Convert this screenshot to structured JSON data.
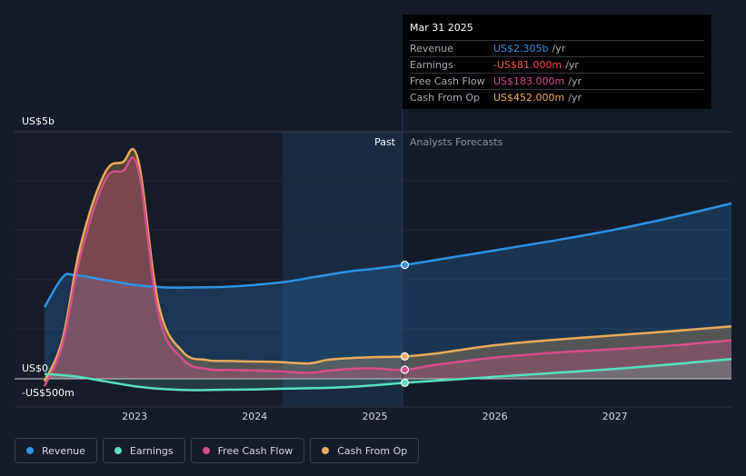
{
  "colors": {
    "background": "#151b28",
    "revenue": "#2e93e6",
    "earnings": "#58e0c0",
    "fcf": "#d44f8c",
    "cfo": "#e8ac5c"
  },
  "tooltip": {
    "date": "Mar 31 2025",
    "rows": [
      {
        "label": "Revenue",
        "value": "US$2.305b",
        "unit": "/yr",
        "color": "#2e93e6"
      },
      {
        "label": "Earnings",
        "value": "-US$81.000m",
        "unit": "/yr",
        "color": "#ff4d4d"
      },
      {
        "label": "Free Cash Flow",
        "value": "US$183.000m",
        "unit": "/yr",
        "color": "#d44f8c"
      },
      {
        "label": "Cash From Op",
        "value": "US$452.000m",
        "unit": "/yr",
        "color": "#e8ac5c"
      }
    ]
  },
  "chart_data": {
    "type": "area",
    "y_top_label": "US$5b",
    "y_zero_label": "US$0",
    "y_bottom_label": "-US$500m",
    "past_label": "Past",
    "forecast_label": "Analysts Forecasts",
    "x_ticks": [
      "2023",
      "2024",
      "2025",
      "2026",
      "2027"
    ],
    "xlim": [
      2022.25,
      2027.97
    ],
    "ylim": [
      -500,
      5000
    ],
    "past_boundary": 2025.25,
    "highlight_start": 2024.25,
    "series": [
      {
        "name": "Revenue",
        "key": "revenue",
        "points": [
          [
            2022.25,
            1450
          ],
          [
            2022.4,
            2050
          ],
          [
            2022.5,
            2100
          ],
          [
            2022.75,
            2000
          ],
          [
            2023,
            1900
          ],
          [
            2023.25,
            1850
          ],
          [
            2023.5,
            1850
          ],
          [
            2023.75,
            1860
          ],
          [
            2024,
            1900
          ],
          [
            2024.25,
            1960
          ],
          [
            2024.5,
            2060
          ],
          [
            2024.75,
            2160
          ],
          [
            2025,
            2230
          ],
          [
            2025.25,
            2305
          ],
          [
            2025.5,
            2400
          ],
          [
            2026,
            2600
          ],
          [
            2026.5,
            2800
          ],
          [
            2027,
            3020
          ],
          [
            2027.5,
            3280
          ],
          [
            2027.97,
            3550
          ]
        ]
      },
      {
        "name": "Earnings",
        "key": "earnings",
        "points": [
          [
            2022.25,
            100
          ],
          [
            2022.5,
            50
          ],
          [
            2022.75,
            -50
          ],
          [
            2023,
            -150
          ],
          [
            2023.25,
            -210
          ],
          [
            2023.5,
            -230
          ],
          [
            2023.75,
            -220
          ],
          [
            2024,
            -215
          ],
          [
            2024.25,
            -200
          ],
          [
            2024.5,
            -190
          ],
          [
            2024.75,
            -170
          ],
          [
            2025,
            -130
          ],
          [
            2025.25,
            -81
          ],
          [
            2025.5,
            -40
          ],
          [
            2026,
            40
          ],
          [
            2026.5,
            120
          ],
          [
            2027,
            200
          ],
          [
            2027.5,
            300
          ],
          [
            2027.97,
            400
          ]
        ]
      },
      {
        "name": "Free Cash Flow",
        "key": "fcf",
        "points": [
          [
            2022.25,
            -150
          ],
          [
            2022.4,
            700
          ],
          [
            2022.55,
            2500
          ],
          [
            2022.75,
            4000
          ],
          [
            2022.9,
            4200
          ],
          [
            2023.03,
            4250
          ],
          [
            2023.2,
            1300
          ],
          [
            2023.4,
            400
          ],
          [
            2023.6,
            200
          ],
          [
            2023.8,
            180
          ],
          [
            2024,
            170
          ],
          [
            2024.2,
            150
          ],
          [
            2024.45,
            120
          ],
          [
            2024.6,
            160
          ],
          [
            2024.8,
            200
          ],
          [
            2025.0,
            210
          ],
          [
            2025.25,
            183
          ],
          [
            2025.5,
            280
          ],
          [
            2026,
            430
          ],
          [
            2026.5,
            530
          ],
          [
            2027,
            600
          ],
          [
            2027.5,
            680
          ],
          [
            2027.97,
            780
          ]
        ]
      },
      {
        "name": "Cash From Op",
        "key": "cfo",
        "points": [
          [
            2022.25,
            -50
          ],
          [
            2022.4,
            800
          ],
          [
            2022.55,
            2700
          ],
          [
            2022.75,
            4150
          ],
          [
            2022.9,
            4380
          ],
          [
            2023.03,
            4420
          ],
          [
            2023.2,
            1500
          ],
          [
            2023.4,
            550
          ],
          [
            2023.6,
            380
          ],
          [
            2023.8,
            360
          ],
          [
            2024,
            350
          ],
          [
            2024.2,
            340
          ],
          [
            2024.45,
            310
          ],
          [
            2024.6,
            380
          ],
          [
            2024.8,
            420
          ],
          [
            2025.0,
            440
          ],
          [
            2025.25,
            452
          ],
          [
            2025.5,
            510
          ],
          [
            2026,
            680
          ],
          [
            2026.5,
            790
          ],
          [
            2027,
            880
          ],
          [
            2027.5,
            970
          ],
          [
            2027.97,
            1060
          ]
        ]
      }
    ]
  }
}
